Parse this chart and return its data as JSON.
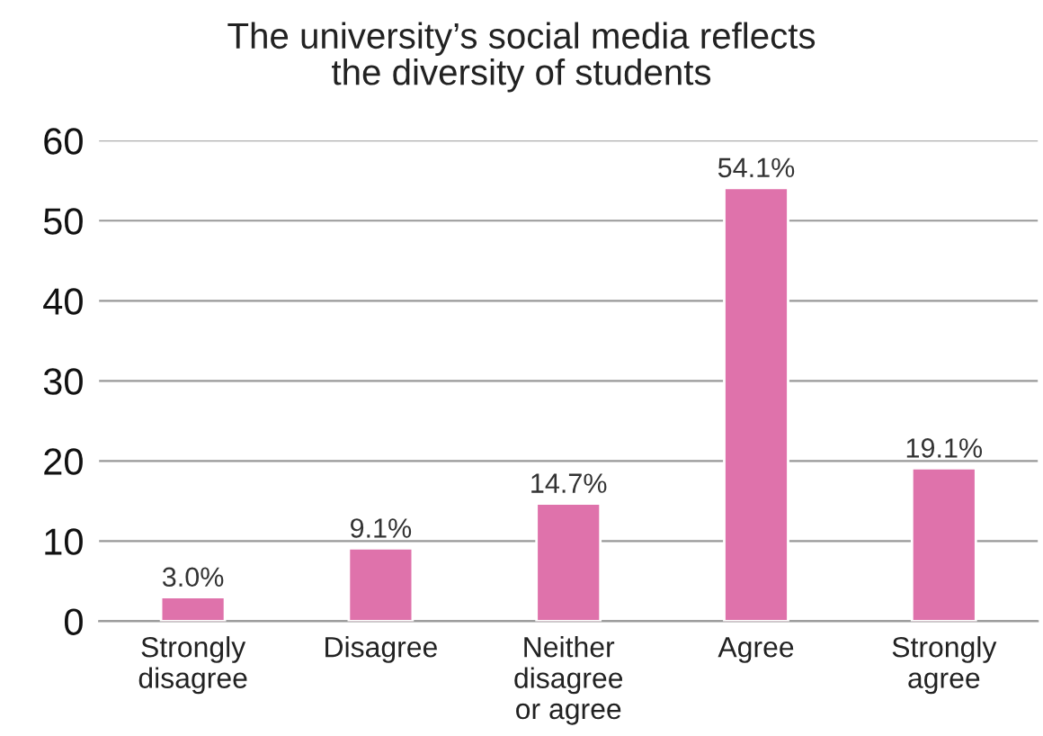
{
  "chart_data": {
    "type": "bar",
    "title": "The university’s social media reflects\nthe diversity of students",
    "categories": [
      "Strongly\ndisagree",
      "Disagree",
      "Neither\ndisagree\nor agree",
      "Agree",
      "Strongly\nagree"
    ],
    "values": [
      3.0,
      9.1,
      14.7,
      54.1,
      19.1
    ],
    "value_labels": [
      "3.0%",
      "9.1%",
      "14.7%",
      "54.1%",
      "19.1%"
    ],
    "color": "#df72ab",
    "ylim": [
      0,
      60
    ],
    "yticks": [
      0,
      10,
      20,
      30,
      40,
      50,
      60
    ],
    "grid": "y"
  }
}
